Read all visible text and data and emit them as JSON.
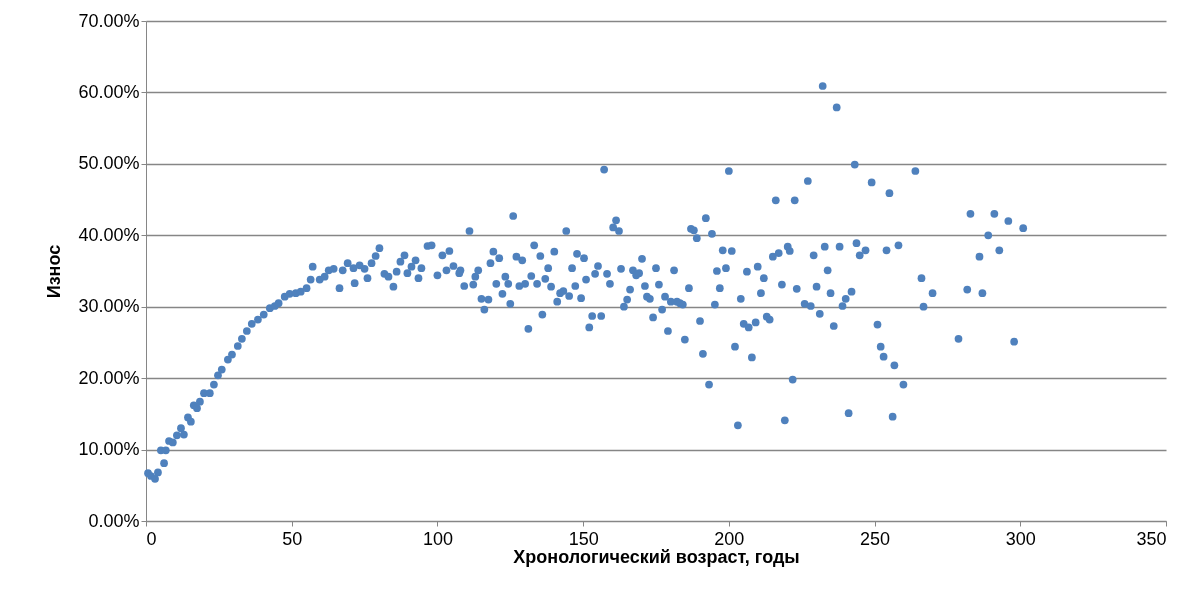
{
  "chart_data": {
    "type": "scatter",
    "xlabel": "Хронологический возраст, годы",
    "ylabel": "Износ",
    "xlim": [
      0,
      350
    ],
    "xticks": [
      0,
      50,
      100,
      150,
      200,
      250,
      300,
      350
    ],
    "ylim": [
      0,
      70
    ],
    "yticks": [
      {
        "value": 0,
        "label": "0.00%"
      },
      {
        "value": 10,
        "label": "10.00%"
      },
      {
        "value": 20,
        "label": "20.00%"
      },
      {
        "value": 30,
        "label": "30.00%"
      },
      {
        "value": 40,
        "label": "40.00%"
      },
      {
        "value": 50,
        "label": "50.00%"
      },
      {
        "value": 60,
        "label": "60.00%"
      },
      {
        "value": 70,
        "label": "70.00%"
      }
    ],
    "grid": "y",
    "marker": "circle",
    "legend": false,
    "series": [
      {
        "color": "#4f81bd",
        "x": [
          0.7,
          1.7,
          3.1,
          4.1,
          5.1,
          6.2,
          6.8,
          7.9,
          9.2,
          10.6,
          12.0,
          13.0,
          14.4,
          15.4,
          16.4,
          17.5,
          18.5,
          19.9,
          21.9,
          23.3,
          24.7,
          26.0,
          28.1,
          29.5,
          31.5,
          32.9,
          34.6,
          36.3,
          38.4,
          40.4,
          42.5,
          44.2,
          45.5,
          47.6,
          49.3,
          51.4,
          53.1,
          55.1,
          56.5,
          57.2,
          59.6,
          61.3,
          62.7,
          64.4,
          66.4,
          67.5,
          69.2,
          71.2,
          71.6,
          73.3,
          75.0,
          76.0,
          77.4,
          78.8,
          80.1,
          81.8,
          83.2,
          84.9,
          86.0,
          87.3,
          88.7,
          89.7,
          91.1,
          92.5,
          93.5,
          94.5,
          96.6,
          98.0,
          100.0,
          101.7,
          104.1,
          103.1,
          105.5,
          107.9,
          107.5,
          109.2,
          111.0,
          112.3,
          113.0,
          114.0,
          115.1,
          116.1,
          117.5,
          118.2,
          119.2,
          120.2,
          121.2,
          122.3,
          123.3,
          124.3,
          125.0,
          126.0,
          127.1,
          128.1,
          129.1,
          130.1,
          131.2,
          132.2,
          133.2,
          134.2,
          135.3,
          136.0,
          137.0,
          138.0,
          139.0,
          140.1,
          141.1,
          142.1,
          143.2,
          144.2,
          145.2,
          146.2,
          147.3,
          147.9,
          149.3,
          150.3,
          151.0,
          152.1,
          153.1,
          154.1,
          155.1,
          156.2,
          157.2,
          158.2,
          159.2,
          160.3,
          161.3,
          162.3,
          163.0,
          164.0,
          165.1,
          166.1,
          167.1,
          168.2,
          169.2,
          170.2,
          171.2,
          171.9,
          172.9,
          174.0,
          175.0,
          176.0,
          177.1,
          178.1,
          179.1,
          180.1,
          181.2,
          182.2,
          183.2,
          184.2,
          184.9,
          186.3,
          187.0,
          188.0,
          189.0,
          190.1,
          191.1,
          192.1,
          193.2,
          194.2,
          195.2,
          195.9,
          196.9,
          197.9,
          199.0,
          200.0,
          201.0,
          202.1,
          203.1,
          204.1,
          205.1,
          206.2,
          206.8,
          207.9,
          209.2,
          209.9,
          211.0,
          212.0,
          213.0,
          214.0,
          215.1,
          216.1,
          217.1,
          218.2,
          219.2,
          220.2,
          220.9,
          221.9,
          222.6,
          223.3,
          226.0,
          227.1,
          228.1,
          229.1,
          230.1,
          231.2,
          232.2,
          232.9,
          233.9,
          234.9,
          236.0,
          237.0,
          238.0,
          239.0,
          240.1,
          241.1,
          242.1,
          243.2,
          243.8,
          244.9,
          246.9,
          249.0,
          251.0,
          252.1,
          253.1,
          254.1,
          255.1,
          256.2,
          256.8,
          258.2,
          259.9,
          264.0,
          266.1,
          266.8,
          269.9,
          278.8,
          281.8,
          282.9,
          287.0,
          286.0,
          289.0,
          291.1,
          292.8,
          295.9,
          297.9,
          301.0
        ],
        "values": [
          6.7,
          6.3,
          5.9,
          6.8,
          9.9,
          8.1,
          9.9,
          11.2,
          11.0,
          12.0,
          13.0,
          12.1,
          14.5,
          13.9,
          16.2,
          15.8,
          16.7,
          17.9,
          17.9,
          19.1,
          20.4,
          21.2,
          22.6,
          23.3,
          24.5,
          25.5,
          26.6,
          27.6,
          28.2,
          28.9,
          29.8,
          30.1,
          30.5,
          31.4,
          31.8,
          31.9,
          32.1,
          32.6,
          33.8,
          35.6,
          33.8,
          34.2,
          35.1,
          35.3,
          32.6,
          35.1,
          36.1,
          35.4,
          33.3,
          35.8,
          35.3,
          34.0,
          36.1,
          37.1,
          38.2,
          34.6,
          34.2,
          32.8,
          34.9,
          36.3,
          37.2,
          34.7,
          35.6,
          36.5,
          34.0,
          35.4,
          38.5,
          38.6,
          34.4,
          37.2,
          37.8,
          35.1,
          35.7,
          35.1,
          34.7,
          32.9,
          40.6,
          33.1,
          34.2,
          35.1,
          31.1,
          29.6,
          31.0,
          36.1,
          37.7,
          33.2,
          36.8,
          31.8,
          34.2,
          33.2,
          30.4,
          42.7,
          37.0,
          32.9,
          36.5,
          33.2,
          26.9,
          34.3,
          38.6,
          33.2,
          37.1,
          28.9,
          33.9,
          35.4,
          32.8,
          37.7,
          30.7,
          31.9,
          32.2,
          40.6,
          31.5,
          35.4,
          32.9,
          37.4,
          31.2,
          36.8,
          33.8,
          27.1,
          28.7,
          34.6,
          35.7,
          28.7,
          49.2,
          34.6,
          33.2,
          41.1,
          42.1,
          40.6,
          35.3,
          30.0,
          31.0,
          32.4,
          35.1,
          34.4,
          34.7,
          36.7,
          32.9,
          31.4,
          31.1,
          28.5,
          35.4,
          33.1,
          29.6,
          31.4,
          26.6,
          30.7,
          35.1,
          30.7,
          30.5,
          30.3,
          25.4,
          32.6,
          40.9,
          40.7,
          39.6,
          28.0,
          23.4,
          42.4,
          19.1,
          40.2,
          30.3,
          35.0,
          32.6,
          37.9,
          35.4,
          49.0,
          37.8,
          24.4,
          13.4,
          31.1,
          27.6,
          34.9,
          27.1,
          22.9,
          27.8,
          35.6,
          31.9,
          34.0,
          28.6,
          28.2,
          37.0,
          44.9,
          37.5,
          33.1,
          14.1,
          38.4,
          37.8,
          19.8,
          44.9,
          32.5,
          30.4,
          47.6,
          30.1,
          37.2,
          32.8,
          29.0,
          60.9,
          38.4,
          35.1,
          31.9,
          27.3,
          57.9,
          38.4,
          30.1,
          31.1,
          15.1,
          32.1,
          49.9,
          38.9,
          37.2,
          37.9,
          47.4,
          27.5,
          24.4,
          23.0,
          37.9,
          45.9,
          14.6,
          21.8,
          38.6,
          19.1,
          49.0,
          34.0,
          30.0,
          31.9,
          25.5,
          32.4,
          43.0,
          31.9,
          37.0,
          40.0,
          43.0,
          37.9,
          42.0,
          25.1,
          41.0
        ]
      }
    ]
  }
}
